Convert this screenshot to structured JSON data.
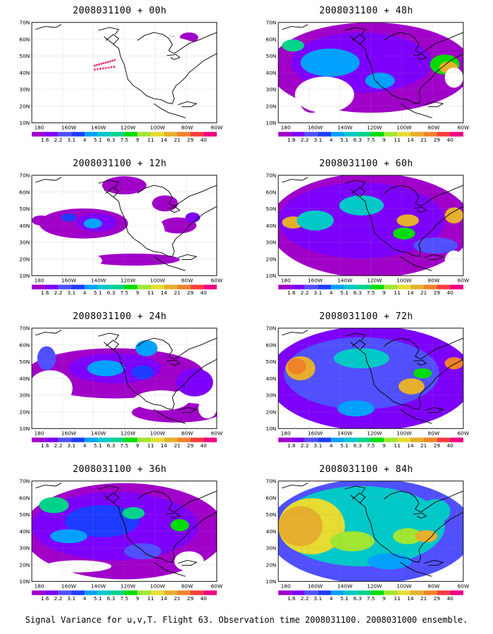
{
  "caption": "Signal Variance for u,v,T. Flight 63. Observation time 2008031100. 2008031000 ensemble.",
  "color_scale": {
    "labels": [
      "1.6",
      "2.2",
      "3.1",
      "4",
      "5.1",
      "6.3",
      "7.5",
      "9",
      "11",
      "14",
      "21",
      "29",
      "40"
    ],
    "colors": [
      "#a000c8",
      "#7d00fa",
      "#5050ff",
      "#1e3cff",
      "#00a0ff",
      "#00c8c8",
      "#00d28c",
      "#00dc00",
      "#a0e632",
      "#e6dc32",
      "#e6af2d",
      "#f08228",
      "#fa3c3c",
      "#f00082"
    ]
  },
  "axes": {
    "lat_labels": [
      "70N",
      "60N",
      "50N",
      "40N",
      "30N",
      "20N",
      "10N"
    ],
    "lon_labels": [
      "180",
      "160W",
      "140W",
      "120W",
      "100W",
      "80W",
      "60W"
    ]
  },
  "panels": [
    {
      "title": "2008031100 + 00h",
      "intensity": 0
    },
    {
      "title": "2008031100 + 12h",
      "intensity": 1
    },
    {
      "title": "2008031100 + 24h",
      "intensity": 2
    },
    {
      "title": "2008031100 + 36h",
      "intensity": 3
    },
    {
      "title": "2008031100 + 48h",
      "intensity": 4
    },
    {
      "title": "2008031100 + 60h",
      "intensity": 5
    },
    {
      "title": "2008031100 + 72h",
      "intensity": 6
    },
    {
      "title": "2008031100 + 84h",
      "intensity": 7
    }
  ]
}
